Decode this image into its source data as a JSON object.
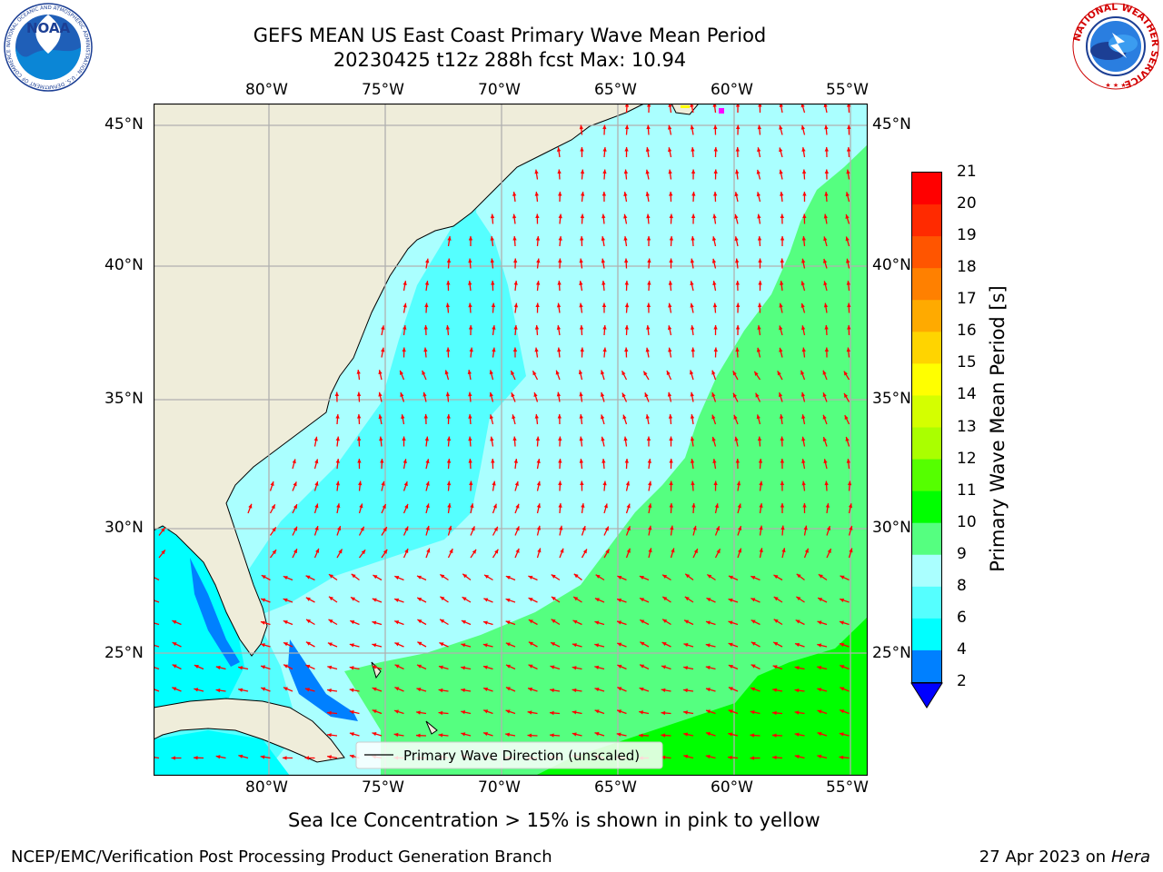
{
  "header": {
    "title_line1": "GEFS MEAN US East Coast Primary Wave Mean Period",
    "title_line2": "20230425 t12z 288h fcst   Max: 10.94"
  },
  "logos": {
    "left": {
      "name": "noaa-logo",
      "text": "NOAA",
      "ring_text": "NATIONAL OCEANIC AND ATMOSPHERIC ADMINISTRATION · U.S. DEPARTMENT OF COMMERCE"
    },
    "right": {
      "name": "nws-logo",
      "ring_text": "NATIONAL WEATHER SERVICE"
    }
  },
  "map": {
    "lon_labels": [
      "80°W",
      "75°W",
      "70°W",
      "65°W",
      "60°W",
      "55°W"
    ],
    "lat_labels": [
      "45°N",
      "40°N",
      "35°N",
      "30°N",
      "25°N"
    ],
    "legend_label": "Primary Wave Direction (unscaled)",
    "arrow_color": "#ff0000",
    "land_color": "#efedda"
  },
  "colorbar": {
    "title": "Primary Wave Mean Period [s]",
    "ticks": [
      "21",
      "20",
      "19",
      "18",
      "17",
      "16",
      "15",
      "14",
      "13",
      "12",
      "11",
      "10",
      "9",
      "8",
      "6",
      "4",
      "2"
    ],
    "colors": [
      "#ff0000",
      "#ff2a00",
      "#ff5500",
      "#ff8000",
      "#ffaa00",
      "#ffd400",
      "#ffff00",
      "#d4ff00",
      "#aaff00",
      "#55ff00",
      "#00ff00",
      "#55ff80",
      "#aaffff",
      "#55ffff",
      "#00ffff",
      "#0080ff",
      "#0000ff"
    ]
  },
  "subtitle": "Sea Ice Concentration > 15% is shown in pink to yellow",
  "footer": {
    "left": "NCEP/EMC/Verification Post Processing Product Generation Branch",
    "right_prefix": "27 Apr 2023 on ",
    "right_machine": "Hera"
  }
}
